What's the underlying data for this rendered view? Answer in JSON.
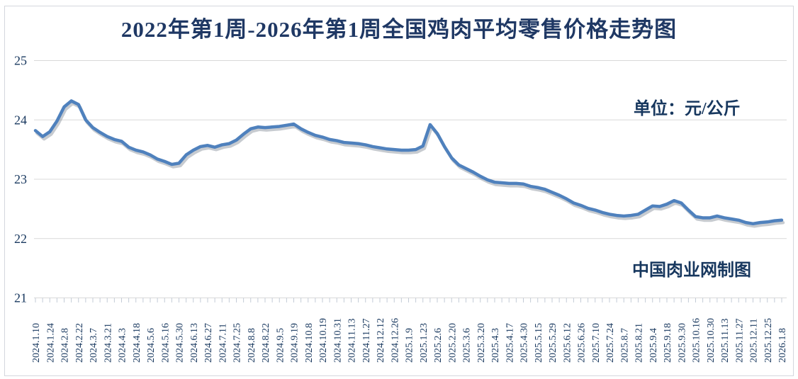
{
  "title": "2022年第1周-2026年第1周全国鸡肉平均零售价格走势图",
  "unit_label": "单位：元/公斤",
  "credit_label": "中国肉业网制图",
  "colors": {
    "title_text": "#1F3864",
    "axis_text": "#17375E",
    "line": "#4F81BD",
    "line_shadow": "rgba(130,140,150,0.45)",
    "gridline": "#d9d9d9",
    "tick": "#c3cbd6",
    "background": "#ffffff"
  },
  "chart_data": {
    "type": "line",
    "title": "2022年第1周-2026年第1周全国鸡肉平均零售价格走势图",
    "xlabel": "",
    "ylabel": "",
    "unit": "元/公斤",
    "ylim": [
      21,
      25
    ],
    "y_ticks": [
      25,
      24,
      23,
      22,
      21
    ],
    "grid": "horizontal",
    "legend": "none",
    "label_every": 2,
    "x_tick_labels": [
      "2024.1.10",
      "2024.1.24",
      "2024.2.8",
      "2024.2.22",
      "2024.3.7",
      "2024.3.21",
      "2024.4.3",
      "2024.4.18",
      "2024.5.6",
      "2024.5.16",
      "2024.5.30",
      "2024.6.13",
      "2024.6.27",
      "2024.7.11",
      "2024.7.25",
      "2024.8.8",
      "2024.8.22",
      "2024.9.5",
      "2024.9.19",
      "2024.10.8",
      "2024.10.19",
      "2024.10.31",
      "2024.11.13",
      "2024.11.27",
      "2024.12.12",
      "2024.12.26",
      "2025.1.9",
      "2025.1.23",
      "2025.2.6",
      "2025.2.20",
      "2025.3.6",
      "2025.3.20",
      "2025.4.3",
      "2025.4.17",
      "2025.4.30",
      "2025.5.15",
      "2025.5.29",
      "2025.6.12",
      "2025.6.26",
      "2025.7.10",
      "2025.7.24",
      "2025.8.7",
      "2025.8.21",
      "2025.9.4",
      "2025.9.18",
      "2025.9.30",
      "2025.10.16",
      "2025.10.30",
      "2025.11.13",
      "2025.11.27",
      "2025.12.11",
      "2025.12.25",
      "2026.1.8"
    ],
    "values": [
      23.82,
      23.72,
      23.8,
      23.98,
      24.22,
      24.32,
      24.26,
      24.0,
      23.87,
      23.79,
      23.72,
      23.67,
      23.64,
      23.54,
      23.49,
      23.46,
      23.41,
      23.34,
      23.3,
      23.25,
      23.27,
      23.41,
      23.49,
      23.55,
      23.57,
      23.54,
      23.58,
      23.6,
      23.66,
      23.76,
      23.85,
      23.88,
      23.87,
      23.88,
      23.89,
      23.91,
      23.93,
      23.85,
      23.79,
      23.74,
      23.71,
      23.67,
      23.65,
      23.62,
      23.61,
      23.6,
      23.58,
      23.55,
      23.53,
      23.51,
      23.5,
      23.49,
      23.49,
      23.5,
      23.56,
      23.92,
      23.77,
      23.55,
      23.36,
      23.24,
      23.18,
      23.12,
      23.05,
      22.99,
      22.95,
      22.94,
      22.93,
      22.93,
      22.92,
      22.88,
      22.86,
      22.83,
      22.78,
      22.73,
      22.67,
      22.6,
      22.56,
      22.51,
      22.48,
      22.44,
      22.41,
      22.39,
      22.38,
      22.39,
      22.41,
      22.48,
      22.55,
      22.54,
      22.58,
      22.64,
      22.6,
      22.48,
      22.37,
      22.35,
      22.35,
      22.38,
      22.35,
      22.33,
      22.31,
      22.27,
      22.25,
      22.27,
      22.28,
      22.3,
      22.31
    ]
  }
}
